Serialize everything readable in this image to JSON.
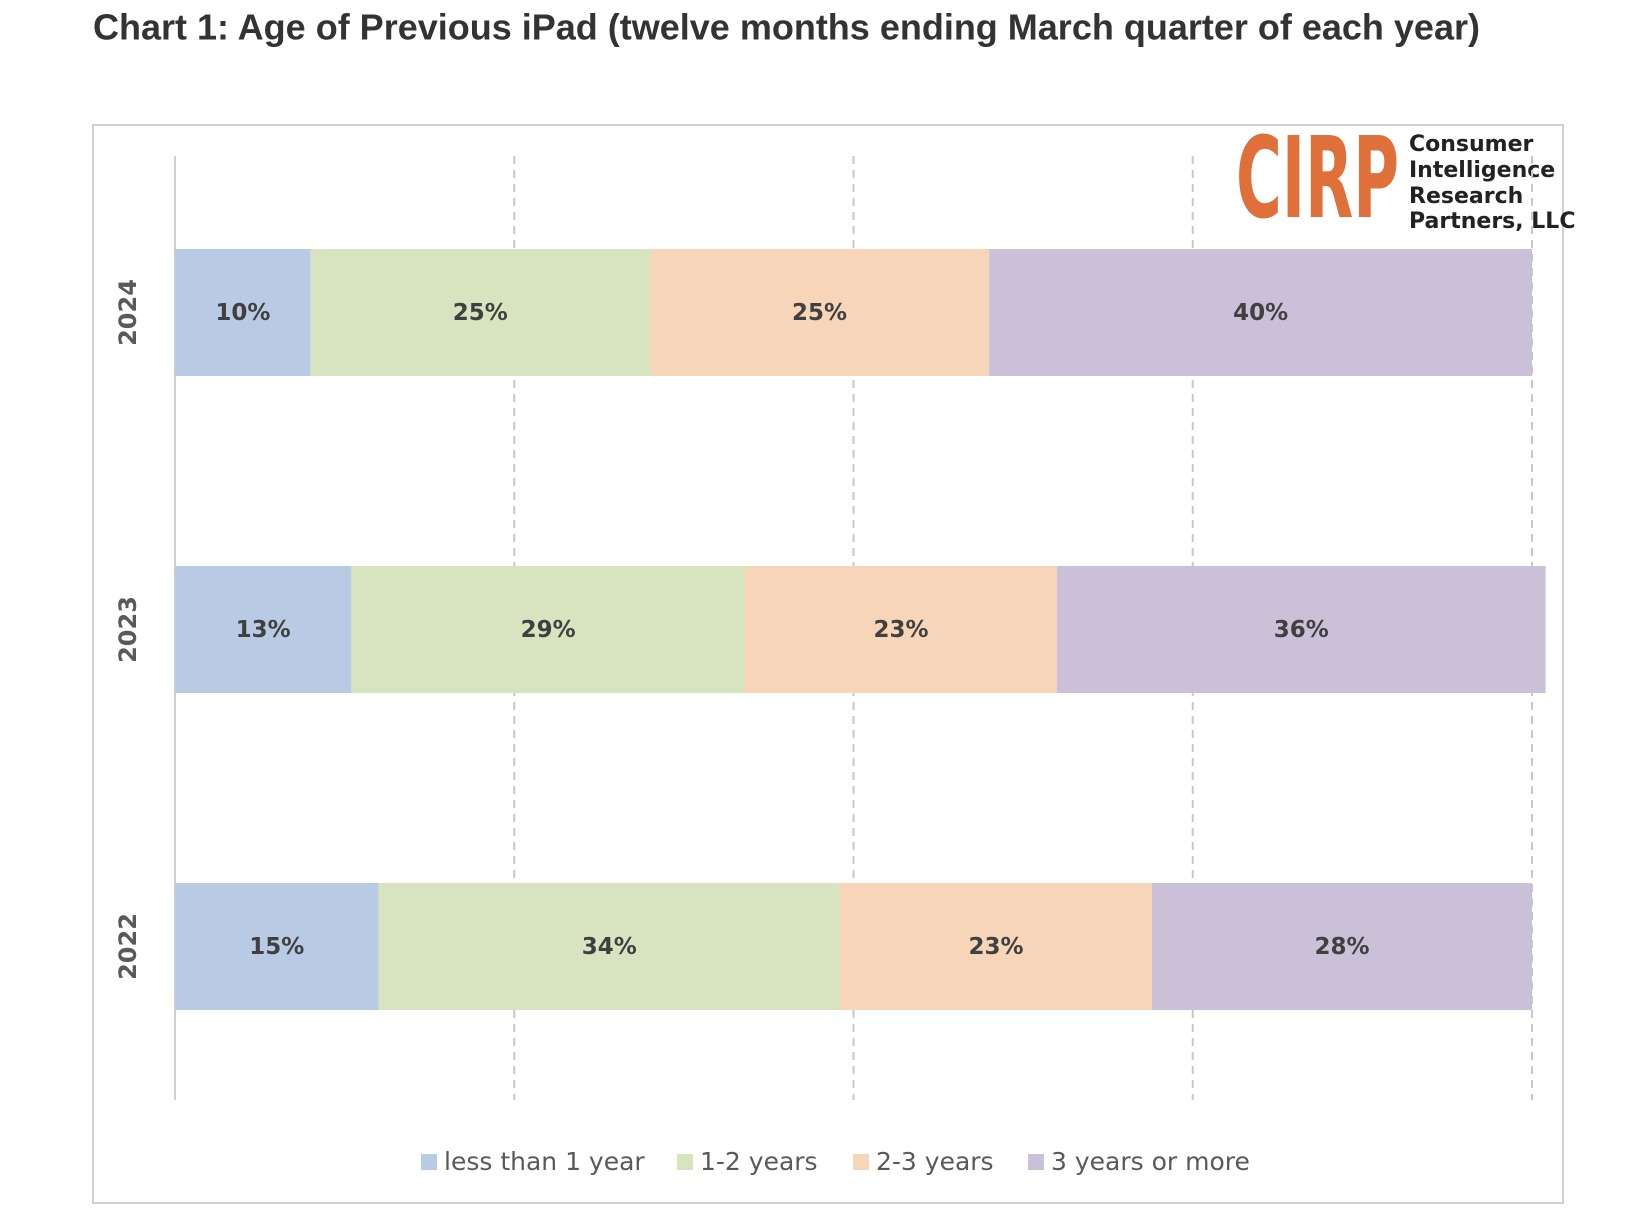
{
  "chart_data": {
    "type": "stacked-bar",
    "title": "Chart 1: Age of Previous iPad (twelve months ending March quarter of each year)",
    "categories": [
      "2024",
      "2023",
      "2022"
    ],
    "series": [
      {
        "name": "less than 1 year",
        "color": "#b9cbe4",
        "values": [
          10,
          13,
          15
        ],
        "value_labels": [
          "10%",
          "13%",
          "15%"
        ]
      },
      {
        "name": "1-2 years",
        "color": "#d8e4c0",
        "values": [
          25,
          29,
          34
        ],
        "value_labels": [
          "25%",
          "29%",
          "34%"
        ]
      },
      {
        "name": "2-3 years",
        "color": "#f6d5b8",
        "values": [
          25,
          23,
          23
        ],
        "value_labels": [
          "25%",
          "23%",
          "23%"
        ]
      },
      {
        "name": "3 years or more",
        "color": "#cac0d8",
        "values": [
          40,
          36,
          28
        ],
        "value_labels": [
          "40%",
          "36%",
          "28%"
        ]
      }
    ],
    "xlim": [
      0,
      100
    ],
    "xticks": [
      0,
      25,
      50,
      75,
      100
    ],
    "grid": true,
    "legend": "bottom",
    "logo_mark": "CIRP",
    "logo_lines": [
      "Consumer",
      "Intelligence",
      "Research",
      "Partners, LLC"
    ]
  }
}
